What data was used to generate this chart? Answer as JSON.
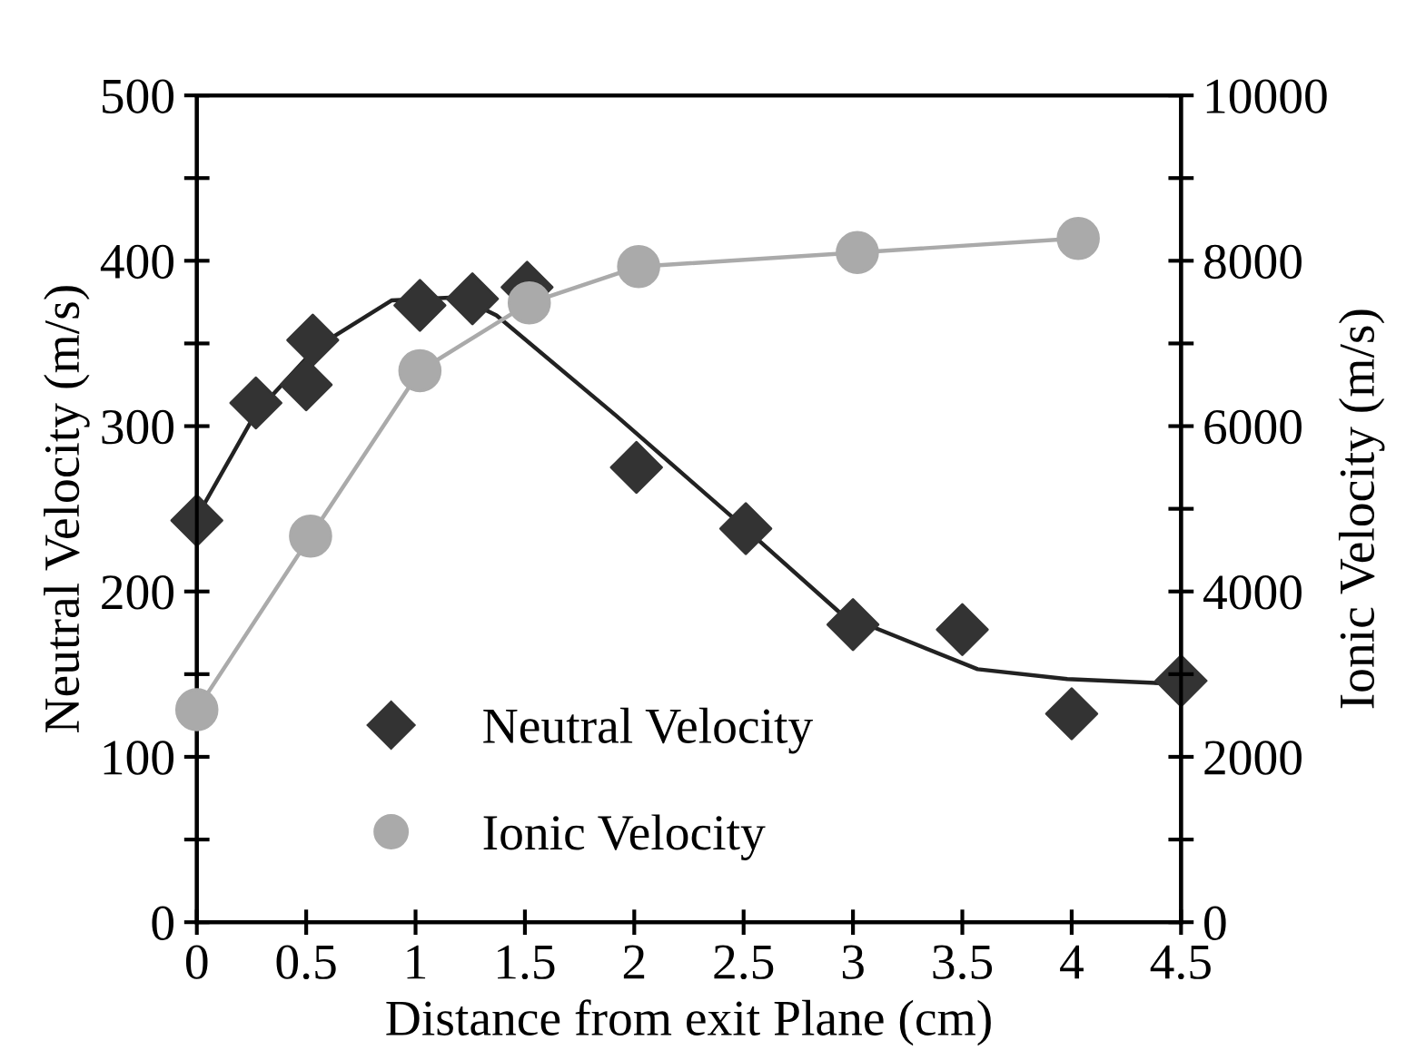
{
  "chart_data": {
    "type": "scatter",
    "xlabel": "Distance from exit Plane (cm)",
    "ylabel": "Neutral Velocity (m/s)",
    "y2label": "Ionic Velocity (m/s)",
    "series": [
      {
        "name": "Neutral Velocity",
        "color": "#333333",
        "marker": "diamond",
        "x": [
          0,
          0.27,
          0.5,
          0.53,
          1.02,
          1.26,
          1.51,
          2.01,
          2.51,
          3.0,
          3.5,
          4.0,
          4.5
        ],
        "values": [
          243,
          314,
          325,
          352,
          373,
          377,
          384,
          275,
          238,
          180,
          177,
          126,
          146
        ]
      },
      {
        "type": "line",
        "color": "#222222",
        "marker": "none",
        "x": [
          0,
          0.27,
          0.55,
          0.89,
          1.2,
          1.37,
          1.92,
          2.5,
          2.95,
          3.57,
          3.98,
          4.5
        ],
        "values": [
          245,
          308,
          348,
          376,
          378,
          367,
          306,
          239,
          186,
          153,
          147,
          144
        ]
      },
      {
        "name": "Ionic Velocity",
        "type": "line",
        "axis": "y2",
        "color": "#aaaaaa",
        "marker": "circle",
        "x": [
          0,
          0.52,
          1.02,
          1.52,
          2.02,
          3.02,
          4.03
        ],
        "values": [
          2570,
          4670,
          6670,
          7490,
          7930,
          8100,
          8270
        ]
      }
    ],
    "xlim": [
      0,
      4.5
    ],
    "xticks": [
      0,
      0.5,
      1,
      1.5,
      2,
      2.5,
      3,
      3.5,
      4,
      4.5
    ],
    "ylim": [
      0,
      500
    ],
    "yticks": [
      0,
      {
        "value": 50,
        "label": null
      },
      100,
      {
        "value": 150,
        "label": null
      },
      200,
      {
        "value": 250,
        "label": null
      },
      300,
      {
        "value": 350,
        "label": null
      },
      400,
      {
        "value": 450,
        "label": null
      },
      500
    ],
    "y2lim": [
      0,
      10000
    ],
    "y2ticks": [
      0,
      {
        "value": 1000,
        "label": null
      },
      2000,
      {
        "value": 3000,
        "label": null
      },
      4000,
      {
        "value": 5000,
        "label": null
      },
      6000,
      {
        "value": 7000,
        "label": null
      },
      8000,
      {
        "value": 9000,
        "label": null
      },
      10000
    ],
    "legend": "bottom left",
    "grid": false
  }
}
